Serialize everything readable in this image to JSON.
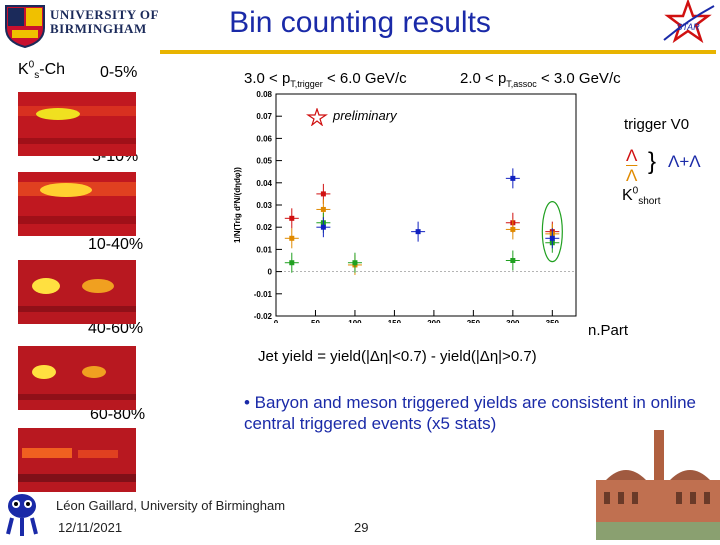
{
  "header": {
    "university_line1": "UNIVERSITY OF",
    "university_line2": "BIRMINGHAM",
    "title": "Bin counting results",
    "star_label": "STAR"
  },
  "left_panels": {
    "particle_label": "K0s-Ch",
    "centralities": [
      "0-5%",
      "5-10%",
      "10-40%",
      "40-60%",
      "60-80%"
    ]
  },
  "plot": {
    "trigger_range": "3.0 < pT,trigger < 6.0 GeV/c",
    "assoc_range": "2.0 < pT,assoc < 3.0 GeV/c",
    "preliminary": "preliminary",
    "trigger_note": "trigger V0",
    "legend_lambda": "Λ",
    "legend_antilambda": "Λ",
    "legend_sum": "Λ+Λ",
    "legend_k0": "K0short",
    "xlabel": "n.Part",
    "ylabel": "1/N(Trig d²N/(dηdφ))",
    "chart_data": {
      "type": "scatter",
      "xlim": [
        0,
        380
      ],
      "ylim": [
        -0.02,
        0.08
      ],
      "yticks": [
        -0.02,
        -0.01,
        0,
        0.01,
        0.02,
        0.03,
        0.04,
        0.05,
        0.06,
        0.07,
        0.08
      ],
      "xticks": [
        0,
        50,
        100,
        150,
        200,
        250,
        300,
        350
      ],
      "series": [
        {
          "color": "#d01010",
          "x": [
            20,
            60,
            300,
            350
          ],
          "y": [
            0.024,
            0.035,
            0.022,
            0.018
          ]
        },
        {
          "color": "#e08a00",
          "x": [
            20,
            60,
            100,
            300,
            350
          ],
          "y": [
            0.015,
            0.028,
            0.003,
            0.019,
            0.017
          ]
        },
        {
          "color": "#20a020",
          "x": [
            20,
            60,
            100,
            300,
            350
          ],
          "y": [
            0.004,
            0.022,
            0.004,
            0.005,
            0.013
          ]
        },
        {
          "color": "#1020c0",
          "x": [
            60,
            180,
            300,
            350
          ],
          "y": [
            0.02,
            0.018,
            0.042,
            0.015
          ]
        }
      ]
    }
  },
  "jet_yield": "Jet yield = yield(|Δη|<0.7) - yield(|Δη|>0.7)",
  "bullet": "• Baryon and meson triggered yields are consistent in online central triggered events (x5 stats)",
  "footer": {
    "author": "Léon Gaillard, University of Birmingham",
    "date": "12/11/2021",
    "page": "29"
  },
  "colors": {
    "title": "#1a2aa8",
    "rule": "#e8b400"
  }
}
